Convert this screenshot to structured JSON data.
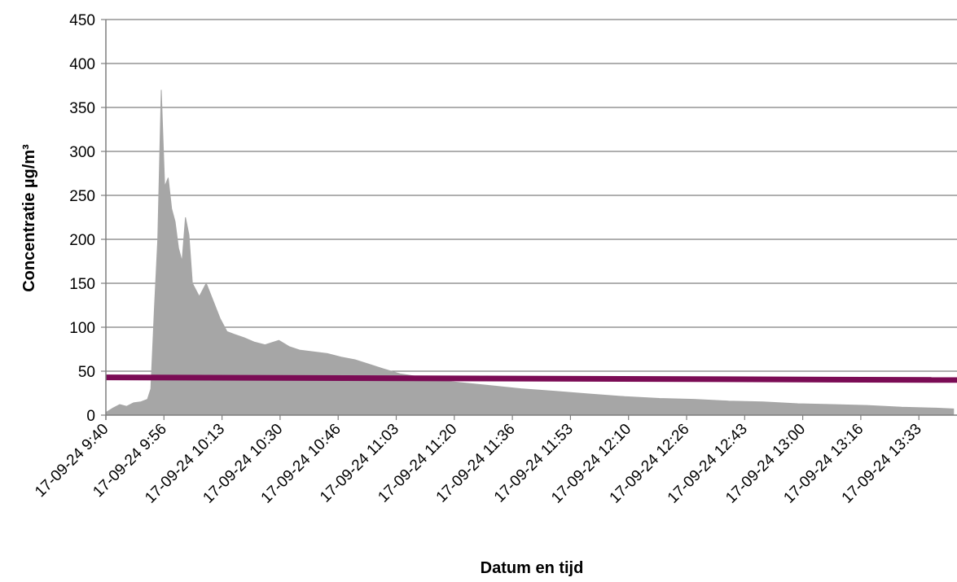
{
  "chart_data": {
    "type": "area",
    "title": "",
    "xlabel": "Datum en tijd",
    "ylabel": "Concentratie µg/m³",
    "ylim": [
      0,
      450
    ],
    "yticks": [
      0,
      50,
      100,
      150,
      200,
      250,
      300,
      350,
      400,
      450
    ],
    "xlim": [
      "09:40",
      "13:46"
    ],
    "xticks": [
      "17-09-24 9:40",
      "17-09-24 9:56",
      "17-09-24 10:13",
      "17-09-24 10:30",
      "17-09-24 10:46",
      "17-09-24 11:03",
      "17-09-24 11:20",
      "17-09-24 11:36",
      "17-09-24 11:53",
      "17-09-24 12:10",
      "17-09-24 12:26",
      "17-09-24 12:43",
      "17-09-24 13:00",
      "17-09-24 13:16",
      "17-09-24 13:33"
    ],
    "grid": "horizontal",
    "series": [
      {
        "color": "#a6a6a6",
        "kind": "area",
        "points": [
          [
            "09:40",
            3
          ],
          [
            "09:42",
            8
          ],
          [
            "09:44",
            12
          ],
          [
            "09:46",
            10
          ],
          [
            "09:48",
            14
          ],
          [
            "09:50",
            15
          ],
          [
            "09:52",
            18
          ],
          [
            "09:53",
            30
          ],
          [
            "09:54",
            120
          ],
          [
            "09:55",
            200
          ],
          [
            "09:56",
            370
          ],
          [
            "09:57",
            260
          ],
          [
            "09:58",
            270
          ],
          [
            "09:59",
            235
          ],
          [
            "10:00",
            220
          ],
          [
            "10:01",
            190
          ],
          [
            "10:02",
            175
          ],
          [
            "10:03",
            225
          ],
          [
            "10:04",
            205
          ],
          [
            "10:05",
            150
          ],
          [
            "10:07",
            135
          ],
          [
            "10:09",
            150
          ],
          [
            "10:11",
            130
          ],
          [
            "10:13",
            110
          ],
          [
            "10:15",
            95
          ],
          [
            "10:17",
            92
          ],
          [
            "10:20",
            88
          ],
          [
            "10:23",
            83
          ],
          [
            "10:26",
            80
          ],
          [
            "10:30",
            85
          ],
          [
            "10:33",
            78
          ],
          [
            "10:36",
            74
          ],
          [
            "10:40",
            72
          ],
          [
            "10:44",
            70
          ],
          [
            "10:48",
            66
          ],
          [
            "10:52",
            63
          ],
          [
            "10:56",
            58
          ],
          [
            "11:00",
            53
          ],
          [
            "11:05",
            47
          ],
          [
            "11:10",
            44
          ],
          [
            "11:15",
            41
          ],
          [
            "11:20",
            38
          ],
          [
            "11:30",
            34
          ],
          [
            "11:40",
            30
          ],
          [
            "11:50",
            27
          ],
          [
            "12:00",
            24
          ],
          [
            "12:10",
            21
          ],
          [
            "12:20",
            19
          ],
          [
            "12:30",
            18
          ],
          [
            "12:40",
            16
          ],
          [
            "12:50",
            15
          ],
          [
            "13:00",
            13
          ],
          [
            "13:10",
            12
          ],
          [
            "13:20",
            11
          ],
          [
            "13:30",
            9
          ],
          [
            "13:40",
            8
          ],
          [
            "13:45",
            7
          ]
        ]
      },
      {
        "color": "#7b0c55",
        "kind": "line",
        "points": [
          [
            "09:40",
            43
          ],
          [
            "13:46",
            40
          ]
        ]
      }
    ]
  }
}
